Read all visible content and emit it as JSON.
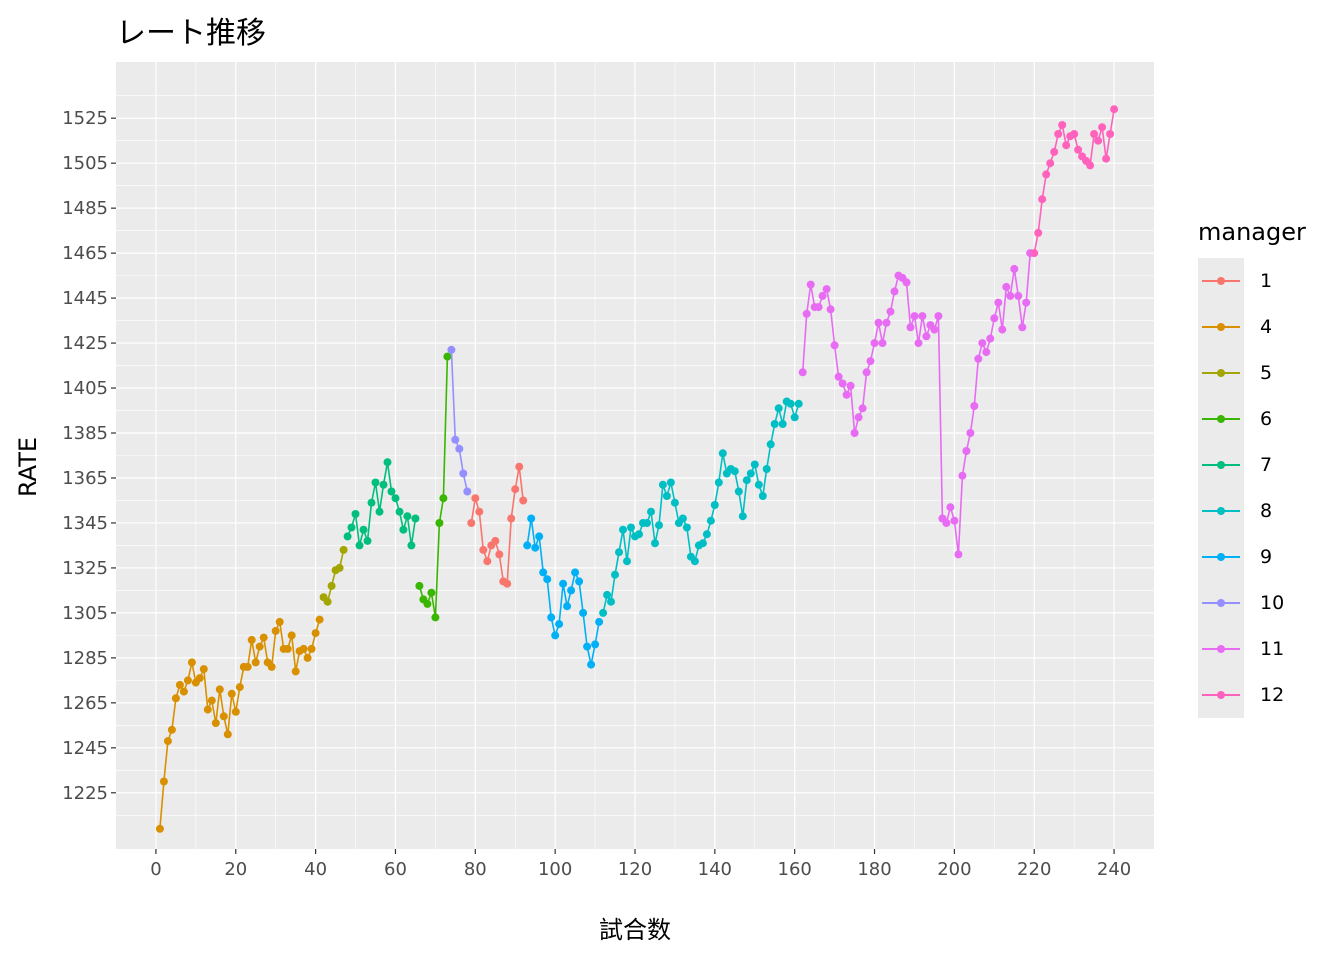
{
  "chart_data": {
    "type": "line",
    "title": "レート推移",
    "xlabel": "試合数",
    "ylabel": "RATE",
    "xlim": [
      -10,
      250
    ],
    "ylim": [
      1200,
      1550
    ],
    "x_ticks": [
      0,
      20,
      40,
      60,
      80,
      100,
      120,
      140,
      160,
      180,
      200,
      220,
      240
    ],
    "y_ticks": [
      1225,
      1245,
      1265,
      1285,
      1305,
      1325,
      1345,
      1365,
      1385,
      1405,
      1425,
      1445,
      1465,
      1485,
      1505,
      1525
    ],
    "grid": true,
    "legend": {
      "title": "manager",
      "position": "right"
    },
    "series": [
      {
        "name": "4",
        "color": "#D89000",
        "x": [
          1,
          2,
          3,
          4,
          5,
          6,
          7,
          8,
          9,
          10,
          11,
          12,
          13,
          14,
          15,
          16,
          17,
          18,
          19,
          20,
          21,
          22,
          23,
          24,
          25,
          26,
          27,
          28,
          29,
          30,
          31,
          32,
          33,
          34,
          35,
          36,
          37,
          38,
          39,
          40,
          41
        ],
        "y": [
          1209,
          1230,
          1248,
          1253,
          1267,
          1273,
          1270,
          1275,
          1283,
          1274,
          1276,
          1280,
          1262,
          1266,
          1256,
          1271,
          1259,
          1251,
          1269,
          1261,
          1272,
          1281,
          1281,
          1293,
          1283,
          1290,
          1294,
          1283,
          1281,
          1297,
          1301,
          1289,
          1289,
          1295,
          1279,
          1288,
          1289,
          1285,
          1289,
          1296,
          1302
        ]
      },
      {
        "name": "5",
        "color": "#A3A500",
        "x": [
          42,
          43,
          44,
          45,
          46,
          47
        ],
        "y": [
          1312,
          1310,
          1317,
          1324,
          1325,
          1333
        ]
      },
      {
        "name": "7",
        "color": "#00BF7D",
        "x": [
          48,
          49,
          50,
          51,
          52,
          53,
          54,
          55,
          56,
          57,
          58,
          59,
          60,
          61,
          62,
          63,
          64,
          65
        ],
        "y": [
          1339,
          1343,
          1349,
          1335,
          1342,
          1337,
          1354,
          1363,
          1350,
          1362,
          1372,
          1359,
          1356,
          1350,
          1342,
          1348,
          1335,
          1347
        ]
      },
      {
        "name": "6",
        "color": "#39B600",
        "x": [
          66,
          67,
          68,
          69,
          70,
          71,
          72,
          73
        ],
        "y": [
          1317,
          1311,
          1309,
          1314,
          1303,
          1345,
          1356,
          1419
        ]
      },
      {
        "name": "10",
        "color": "#9590FF",
        "x": [
          74,
          75,
          76,
          77,
          78
        ],
        "y": [
          1422,
          1382,
          1378,
          1367,
          1359
        ]
      },
      {
        "name": "1",
        "color": "#F8766D",
        "x": [
          79,
          80,
          81,
          82,
          83,
          84,
          85,
          86,
          87,
          88,
          89,
          90,
          91,
          92
        ],
        "y": [
          1345,
          1356,
          1350,
          1333,
          1328,
          1335,
          1337,
          1331,
          1319,
          1318,
          1347,
          1360,
          1370,
          1355
        ]
      },
      {
        "name": "9",
        "color": "#00B0F6",
        "x": [
          93,
          94,
          95,
          96,
          97,
          98,
          99,
          100,
          101,
          102,
          103,
          104,
          105,
          106,
          107,
          108,
          109,
          110,
          111
        ],
        "y": [
          1335,
          1347,
          1334,
          1339,
          1323,
          1320,
          1303,
          1295,
          1300,
          1318,
          1308,
          1315,
          1323,
          1319,
          1305,
          1290,
          1282,
          1291,
          1301
        ]
      },
      {
        "name": "8",
        "color": "#00BFC4",
        "x": [
          112,
          113,
          114,
          115,
          116,
          117,
          118,
          119,
          120,
          121,
          122,
          123,
          124,
          125,
          126,
          127,
          128,
          129,
          130,
          131,
          132,
          133,
          134,
          135,
          136,
          137,
          138,
          139,
          140,
          141,
          142,
          143,
          144,
          145,
          146,
          147,
          148,
          149,
          150,
          151,
          152,
          153,
          154,
          155,
          156,
          157,
          158,
          159,
          160,
          161
        ],
        "y": [
          1305,
          1313,
          1310,
          1322,
          1332,
          1342,
          1328,
          1343,
          1339,
          1340,
          1345,
          1345,
          1350,
          1336,
          1344,
          1362,
          1357,
          1363,
          1354,
          1345,
          1347,
          1343,
          1330,
          1328,
          1335,
          1336,
          1340,
          1346,
          1353,
          1363,
          1376,
          1367,
          1369,
          1368,
          1359,
          1348,
          1364,
          1367,
          1371,
          1362,
          1357,
          1369,
          1380,
          1389,
          1396,
          1389,
          1399,
          1398,
          1392,
          1398
        ]
      },
      {
        "name": "11",
        "color": "#E76BF3",
        "x": [
          162,
          163,
          164,
          165,
          166,
          167,
          168,
          169,
          170,
          171,
          172,
          173,
          174,
          175,
          176,
          177,
          178,
          179,
          180,
          181,
          182,
          183,
          184,
          185,
          186,
          187,
          188,
          189,
          190,
          191,
          192,
          193,
          194,
          195,
          196,
          197,
          198,
          199,
          200,
          201,
          202,
          203,
          204,
          205,
          206,
          207,
          208,
          209,
          210,
          211,
          212,
          213,
          214,
          215,
          216,
          217,
          218,
          219
        ],
        "y": [
          1412,
          1438,
          1451,
          1441,
          1441,
          1446,
          1449,
          1440,
          1424,
          1410,
          1407,
          1402,
          1406,
          1385,
          1392,
          1396,
          1412,
          1417,
          1425,
          1434,
          1425,
          1434,
          1439,
          1448,
          1455,
          1454,
          1452,
          1432,
          1437,
          1425,
          1437,
          1428,
          1433,
          1431,
          1437,
          1347,
          1345,
          1352,
          1346,
          1331,
          1366,
          1377,
          1385,
          1397,
          1418,
          1425,
          1421,
          1427,
          1436,
          1443,
          1431,
          1450,
          1446,
          1458,
          1446,
          1432,
          1443,
          1465
        ]
      },
      {
        "name": "12",
        "color": "#FF62BC",
        "x": [
          220,
          221,
          222,
          223,
          224,
          225,
          226,
          227,
          228,
          229,
          230,
          231,
          232,
          233,
          234,
          235,
          236,
          237,
          238,
          239,
          240
        ],
        "y": [
          1465,
          1474,
          1489,
          1500,
          1505,
          1510,
          1518,
          1522,
          1513,
          1517,
          1518,
          1511,
          1508,
          1506,
          1504,
          1518,
          1515,
          1521,
          1507,
          1518,
          1529
        ]
      }
    ]
  }
}
